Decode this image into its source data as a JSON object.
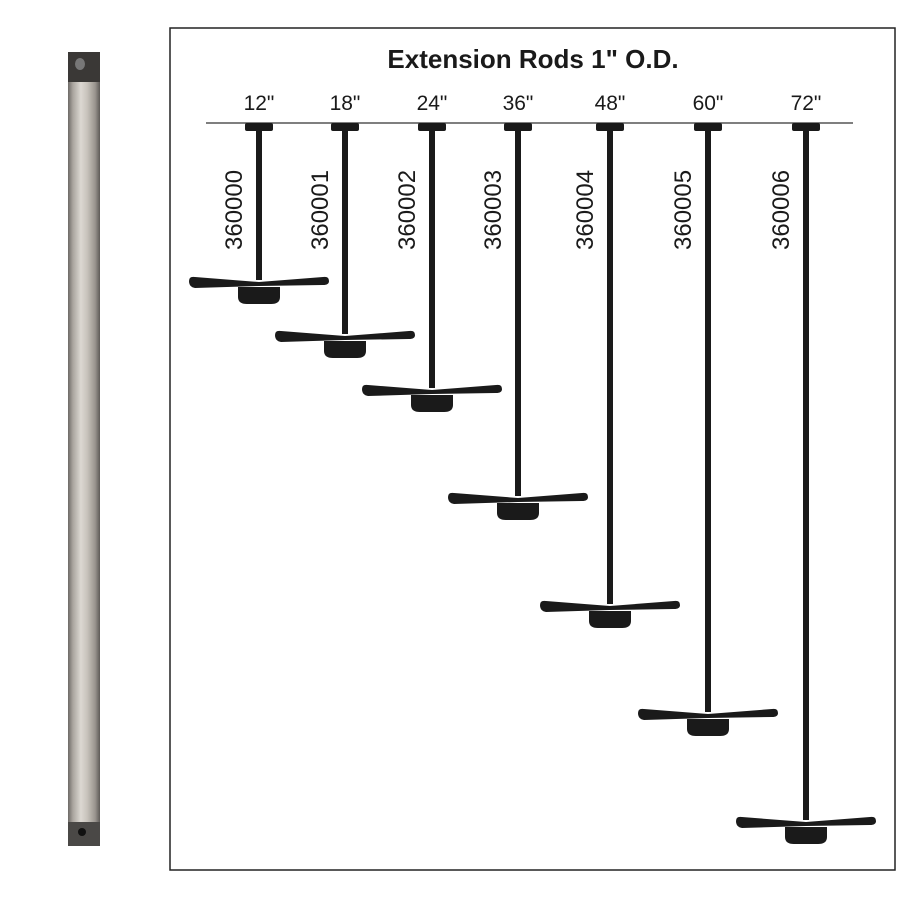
{
  "title": "Extension Rods 1\" O.D.",
  "rods": [
    {
      "length_in": 12,
      "label": "12\"",
      "part": "360000"
    },
    {
      "length_in": 18,
      "label": "18\"",
      "part": "360001"
    },
    {
      "length_in": 24,
      "label": "24\"",
      "part": "360002"
    },
    {
      "length_in": 36,
      "label": "36\"",
      "part": "360003"
    },
    {
      "length_in": 48,
      "label": "48\"",
      "part": "360004"
    },
    {
      "length_in": 60,
      "label": "60\"",
      "part": "360005"
    },
    {
      "length_in": 72,
      "label": "72\"",
      "part": "360006"
    }
  ],
  "colors": {
    "ink": "#1a1a1a",
    "rod_finish": "#bdb8b2"
  }
}
